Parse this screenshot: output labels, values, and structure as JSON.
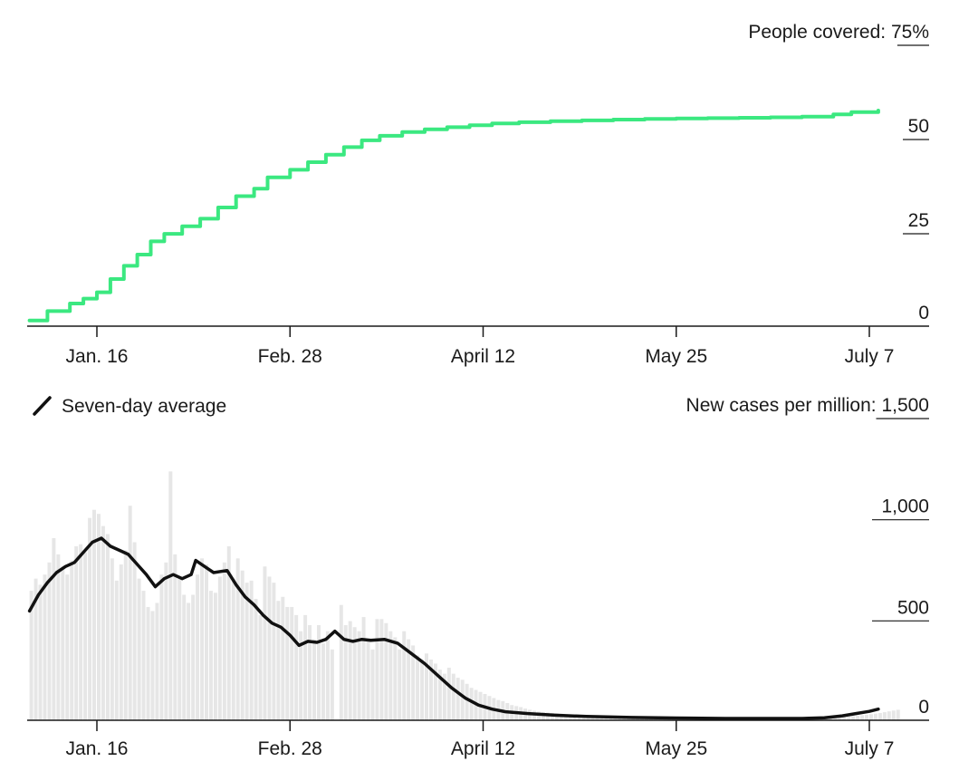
{
  "chart_data": [
    {
      "type": "line",
      "title": "",
      "ylabel": "People covered:",
      "y_unit": "%",
      "ylim": [
        0,
        75
      ],
      "y_ticks": [
        {
          "value": 75,
          "label": "75%"
        },
        {
          "value": 50,
          "label": "50"
        },
        {
          "value": 25,
          "label": "25"
        },
        {
          "value": 0,
          "label": "0"
        }
      ],
      "x_ticks": [
        {
          "date": "2021-01-16",
          "label": "Jan. 16"
        },
        {
          "date": "2021-02-28",
          "label": "Feb. 28"
        },
        {
          "date": "2021-04-12",
          "label": "April 12"
        },
        {
          "date": "2021-05-25",
          "label": "May 25"
        },
        {
          "date": "2021-07-07",
          "label": "July 7"
        }
      ],
      "xlim": [
        "2021-01-01",
        "2021-07-13"
      ],
      "grid": false,
      "step": true,
      "color": "#3be880",
      "series": [
        {
          "name": "",
          "points": [
            [
              "2021-01-01",
              1.5
            ],
            [
              "2021-01-05",
              4.0
            ],
            [
              "2021-01-10",
              6.0
            ],
            [
              "2021-01-13",
              7.3
            ],
            [
              "2021-01-16",
              9.0
            ],
            [
              "2021-01-19",
              12.5
            ],
            [
              "2021-01-22",
              16.0
            ],
            [
              "2021-01-25",
              19.0
            ],
            [
              "2021-01-28",
              22.5
            ],
            [
              "2021-01-31",
              24.5
            ],
            [
              "2021-02-04",
              26.5
            ],
            [
              "2021-02-08",
              28.5
            ],
            [
              "2021-02-12",
              31.5
            ],
            [
              "2021-02-16",
              34.5
            ],
            [
              "2021-02-20",
              36.5
            ],
            [
              "2021-02-23",
              39.5
            ],
            [
              "2021-02-28",
              41.5
            ],
            [
              "2021-03-04",
              43.5
            ],
            [
              "2021-03-08",
              45.5
            ],
            [
              "2021-03-12",
              47.5
            ],
            [
              "2021-03-16",
              49.3
            ],
            [
              "2021-03-20",
              50.5
            ],
            [
              "2021-03-25",
              51.5
            ],
            [
              "2021-03-30",
              52.2
            ],
            [
              "2021-04-04",
              52.8
            ],
            [
              "2021-04-09",
              53.3
            ],
            [
              "2021-04-14",
              53.8
            ],
            [
              "2021-04-20",
              54.1
            ],
            [
              "2021-04-27",
              54.4
            ],
            [
              "2021-05-04",
              54.6
            ],
            [
              "2021-05-11",
              54.8
            ],
            [
              "2021-05-18",
              55.0
            ],
            [
              "2021-05-25",
              55.1
            ],
            [
              "2021-06-01",
              55.2
            ],
            [
              "2021-06-08",
              55.3
            ],
            [
              "2021-06-15",
              55.4
            ],
            [
              "2021-06-22",
              55.6
            ],
            [
              "2021-06-29",
              56.2
            ],
            [
              "2021-07-03",
              56.8
            ],
            [
              "2021-07-09",
              57.2
            ]
          ]
        }
      ]
    },
    {
      "type": "bar",
      "title": "",
      "ylabel": "New cases per million:",
      "ylim": [
        0,
        1500
      ],
      "y_ticks": [
        {
          "value": 1500,
          "label": "1,500"
        },
        {
          "value": 1000,
          "label": "1,000"
        },
        {
          "value": 500,
          "label": "500"
        },
        {
          "value": 0,
          "label": "0"
        }
      ],
      "x_ticks": [
        {
          "date": "2021-01-16",
          "label": "Jan. 16"
        },
        {
          "date": "2021-02-28",
          "label": "Feb. 28"
        },
        {
          "date": "2021-04-12",
          "label": "April 12"
        },
        {
          "date": "2021-05-25",
          "label": "May 25"
        },
        {
          "date": "2021-07-07",
          "label": "July 7"
        }
      ],
      "xlim": [
        "2021-01-01",
        "2021-07-13"
      ],
      "grid": false,
      "bar_color": "#e6e6e6",
      "line_color": "#111111",
      "legend": {
        "label": "Seven-day average",
        "position": "top-left"
      },
      "bars": {
        "start": "2021-01-01",
        "interval_days": 1,
        "values": [
          640,
          700,
          670,
          720,
          780,
          900,
          820,
          760,
          720,
          790,
          860,
          870,
          830,
          1000,
          1040,
          1020,
          960,
          920,
          800,
          690,
          770,
          840,
          1060,
          880,
          700,
          640,
          560,
          540,
          580,
          720,
          780,
          1230,
          820,
          700,
          620,
          580,
          620,
          720,
          800,
          770,
          640,
          630,
          710,
          780,
          860,
          700,
          800,
          740,
          680,
          690,
          600,
          520,
          760,
          710,
          680,
          590,
          610,
          560,
          560,
          520,
          440,
          520,
          470,
          400,
          470,
          380,
          440,
          350,
          0,
          570,
          470,
          490,
          460,
          440,
          510,
          400,
          350,
          500,
          500,
          480,
          440,
          410,
          350,
          440,
          400,
          370,
          320,
          300,
          330,
          300,
          280,
          250,
          230,
          260,
          230,
          210,
          200,
          180,
          160,
          150,
          140,
          130,
          120,
          110,
          100,
          95,
          85,
          75,
          70,
          65,
          58,
          52,
          47,
          43,
          40,
          38,
          36,
          34,
          32,
          30,
          28,
          27,
          26,
          25,
          24,
          23,
          22,
          21,
          20,
          20,
          19,
          18,
          17,
          17,
          16,
          15,
          15,
          14,
          14,
          13,
          13,
          12,
          12,
          11,
          11,
          11,
          10,
          10,
          10,
          10,
          9,
          9,
          9,
          9,
          9,
          9,
          9,
          9,
          9,
          9,
          9,
          9,
          9,
          9,
          9,
          9,
          9,
          9,
          9,
          9,
          9,
          9,
          9,
          9,
          10,
          10,
          11,
          12,
          13,
          14,
          15,
          17,
          19,
          21,
          23,
          25,
          27,
          30,
          33,
          36,
          40,
          44,
          48,
          52
        ]
      },
      "series": [
        {
          "name": "Seven-day average",
          "points": [
            [
              "2021-01-01",
              540
            ],
            [
              "2021-01-03",
              620
            ],
            [
              "2021-01-05",
              680
            ],
            [
              "2021-01-07",
              730
            ],
            [
              "2021-01-09",
              760
            ],
            [
              "2021-01-11",
              780
            ],
            [
              "2021-01-13",
              830
            ],
            [
              "2021-01-15",
              880
            ],
            [
              "2021-01-17",
              900
            ],
            [
              "2021-01-19",
              860
            ],
            [
              "2021-01-21",
              840
            ],
            [
              "2021-01-23",
              820
            ],
            [
              "2021-01-25",
              770
            ],
            [
              "2021-01-27",
              720
            ],
            [
              "2021-01-29",
              660
            ],
            [
              "2021-01-31",
              700
            ],
            [
              "2021-02-02",
              720
            ],
            [
              "2021-02-04",
              700
            ],
            [
              "2021-02-06",
              720
            ],
            [
              "2021-02-07",
              790
            ],
            [
              "2021-02-09",
              760
            ],
            [
              "2021-02-11",
              730
            ],
            [
              "2021-02-14",
              740
            ],
            [
              "2021-02-16",
              670
            ],
            [
              "2021-02-18",
              610
            ],
            [
              "2021-02-20",
              570
            ],
            [
              "2021-02-22",
              520
            ],
            [
              "2021-02-24",
              480
            ],
            [
              "2021-02-26",
              460
            ],
            [
              "2021-02-28",
              420
            ],
            [
              "2021-03-02",
              370
            ],
            [
              "2021-03-04",
              390
            ],
            [
              "2021-03-06",
              385
            ],
            [
              "2021-03-08",
              400
            ],
            [
              "2021-03-10",
              440
            ],
            [
              "2021-03-12",
              400
            ],
            [
              "2021-03-14",
              390
            ],
            [
              "2021-03-16",
              400
            ],
            [
              "2021-03-18",
              395
            ],
            [
              "2021-03-21",
              400
            ],
            [
              "2021-03-24",
              380
            ],
            [
              "2021-03-27",
              330
            ],
            [
              "2021-03-30",
              280
            ],
            [
              "2021-04-02",
              220
            ],
            [
              "2021-04-05",
              160
            ],
            [
              "2021-04-08",
              110
            ],
            [
              "2021-04-11",
              75
            ],
            [
              "2021-04-14",
              55
            ],
            [
              "2021-04-17",
              42
            ],
            [
              "2021-04-22",
              33
            ],
            [
              "2021-04-28",
              25
            ],
            [
              "2021-05-05",
              19
            ],
            [
              "2021-05-15",
              14
            ],
            [
              "2021-05-25",
              11
            ],
            [
              "2021-06-05",
              9
            ],
            [
              "2021-06-15",
              9
            ],
            [
              "2021-06-22",
              9
            ],
            [
              "2021-06-27",
              12
            ],
            [
              "2021-07-01",
              22
            ],
            [
              "2021-07-04",
              33
            ],
            [
              "2021-07-07",
              44
            ],
            [
              "2021-07-09",
              55
            ]
          ]
        }
      ]
    }
  ]
}
